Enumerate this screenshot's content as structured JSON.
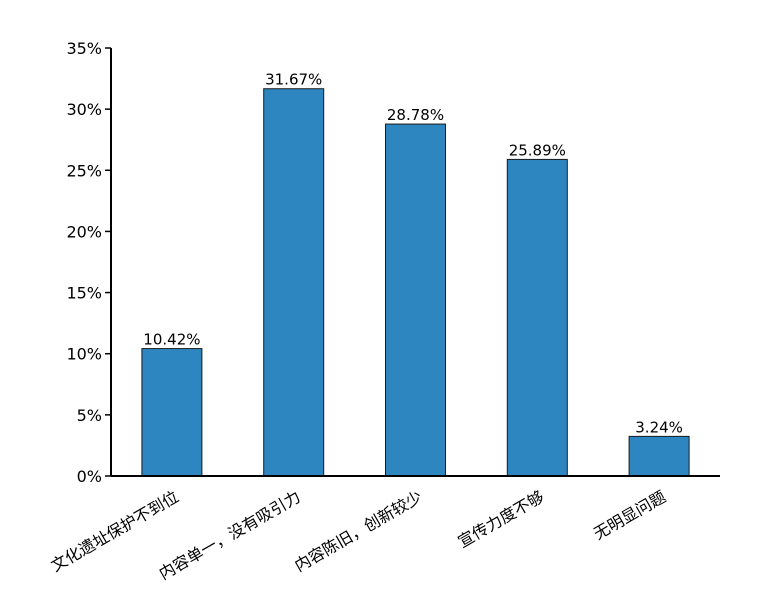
{
  "chart_data": {
    "type": "bar",
    "categories": [
      "文化遗址保护不到位",
      "内容单一，没有吸引力",
      "内容陈旧，创新较少",
      "宣传力度不够",
      "无明显问题"
    ],
    "values": [
      10.42,
      31.67,
      28.78,
      25.89,
      3.24
    ],
    "data_labels": [
      "10.42%",
      "31.67%",
      "28.78%",
      "25.89%",
      "3.24%"
    ],
    "ylim": [
      0,
      35
    ],
    "y_ticks": [
      0,
      5,
      10,
      15,
      20,
      25,
      30,
      35
    ],
    "y_tick_labels": [
      "0%",
      "5%",
      "10%",
      "15%",
      "20%",
      "25%",
      "30%",
      "35%"
    ],
    "title": "",
    "xlabel": "",
    "ylabel": "",
    "grid": false,
    "legend": "none",
    "colors": {
      "bar_fill": "#2e86c1",
      "bar_stroke": "#1a1a1a",
      "axis": "#000000"
    }
  }
}
